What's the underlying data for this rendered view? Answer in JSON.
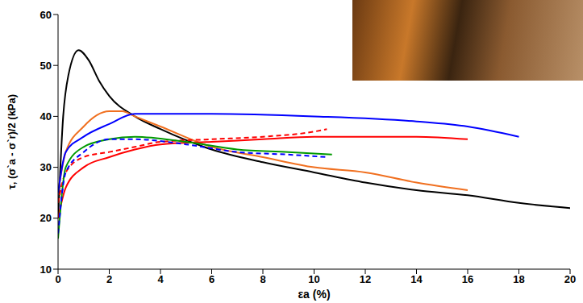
{
  "chart_data": {
    "type": "line",
    "x_label": "εa (%)",
    "y_label": "τ, (σ`a - σ`r)/2 (kPa)",
    "xlim": [
      0,
      20
    ],
    "xticks": [
      0,
      2,
      4,
      6,
      8,
      10,
      12,
      14,
      16,
      18,
      20
    ],
    "ylim": [
      10,
      60
    ],
    "yticks": [
      10,
      20,
      30,
      40,
      50,
      60
    ],
    "grid": false,
    "series": [
      {
        "color": "#000000",
        "line_style": "solid",
        "x": [
          0,
          0.2,
          0.4,
          0.8,
          1.2,
          1.6,
          2,
          3,
          4,
          6,
          8,
          10,
          12,
          14,
          16,
          18,
          20
        ],
        "values": [
          20,
          40,
          48,
          53,
          51,
          47,
          44,
          40,
          37.5,
          33.5,
          31,
          29,
          27,
          25.5,
          24.5,
          23,
          22
        ]
      },
      {
        "color": "#f07020",
        "line_style": "solid",
        "x": [
          0,
          0.3,
          1,
          2,
          2.5,
          3,
          4,
          6,
          8,
          10,
          12,
          14,
          16
        ],
        "values": [
          25,
          33,
          38,
          41,
          41,
          40,
          38,
          34,
          32,
          30,
          29,
          27,
          25.5
        ]
      },
      {
        "color": "#0000ff",
        "line_style": "solid",
        "x": [
          0,
          0.3,
          1,
          2,
          3,
          6,
          10,
          14,
          16,
          18
        ],
        "values": [
          25,
          33,
          36,
          38.5,
          40.5,
          40.5,
          40,
          39,
          38,
          36
        ]
      },
      {
        "color": "#ff0000",
        "line_style": "solid",
        "x": [
          0,
          0.3,
          1,
          2,
          3,
          4,
          6,
          8,
          10,
          12,
          14,
          16
        ],
        "values": [
          20,
          26,
          30,
          32,
          33.5,
          34.5,
          35,
          35.5,
          36,
          36,
          36,
          35.5
        ]
      },
      {
        "color": "#ff0000",
        "line_style": "dashed",
        "x": [
          0,
          0.3,
          1,
          2,
          3,
          4,
          6,
          8,
          10,
          10.5
        ],
        "values": [
          23,
          29,
          32,
          33,
          34,
          35,
          35.5,
          36,
          37,
          37.5
        ]
      },
      {
        "color": "#009900",
        "line_style": "solid",
        "x": [
          0,
          0.3,
          1,
          2,
          3,
          5,
          7,
          9,
          10.7
        ],
        "values": [
          16,
          30,
          34,
          35.5,
          36,
          35,
          33.5,
          33,
          32.5
        ]
      },
      {
        "color": "#0000ff",
        "line_style": "dashed",
        "x": [
          0,
          0.3,
          1,
          2,
          3,
          5,
          7,
          9,
          10.5
        ],
        "values": [
          17,
          29,
          33,
          35.5,
          35.5,
          34.5,
          33,
          32.5,
          32
        ]
      }
    ]
  }
}
